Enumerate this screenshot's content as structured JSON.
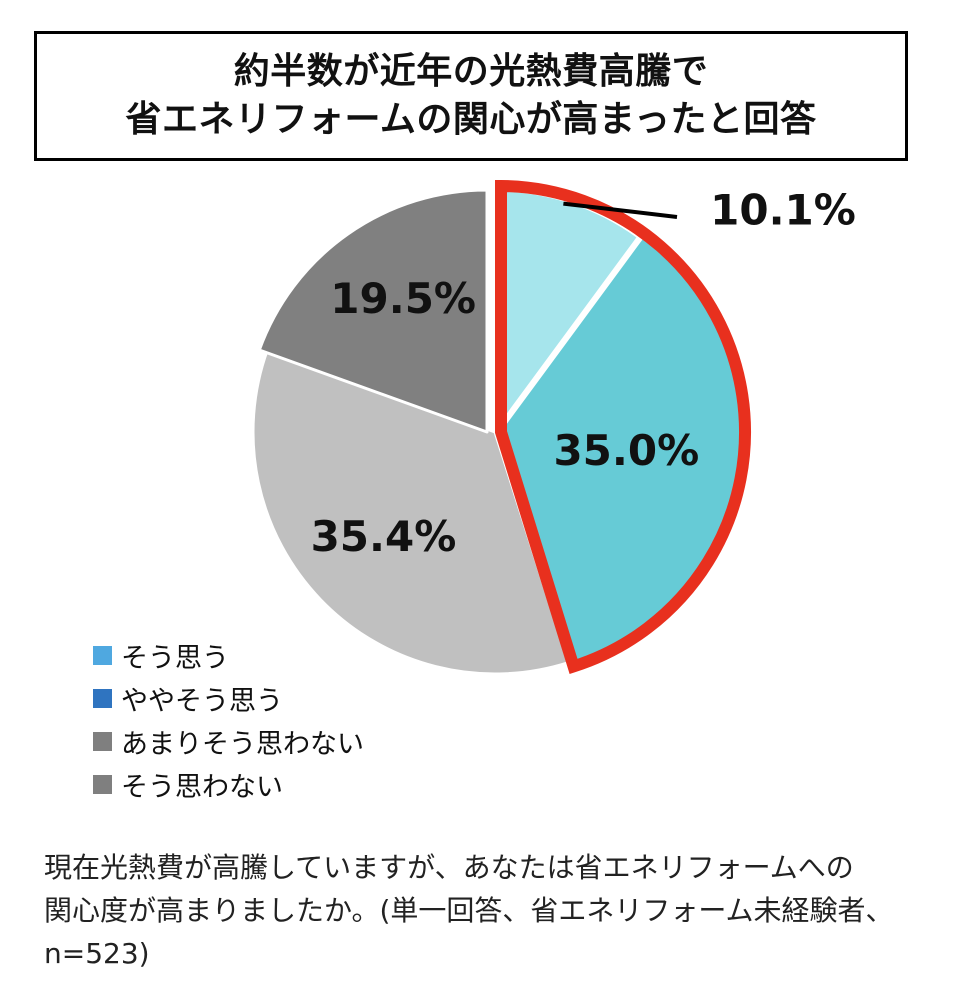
{
  "title": {
    "line1": "約半数が近年の光熱費高騰で",
    "line2": "省エネリフォームの関心が高まったと回答"
  },
  "chart_data": {
    "type": "pie",
    "slices": [
      {
        "label": "そう思う",
        "value": 10.1,
        "display": "10.1%",
        "color": "#a6e5ec",
        "highlighted": true
      },
      {
        "label": "ややそう思う",
        "value": 35.0,
        "display": "35.0%",
        "color": "#66cbd6",
        "highlighted": true
      },
      {
        "label": "あまりそう思わない",
        "value": 35.4,
        "display": "35.4%",
        "color": "#c0c0c0",
        "highlighted": false
      },
      {
        "label": "そう思わない",
        "value": 19.5,
        "display": "19.5%",
        "color": "#808080",
        "highlighted": false
      }
    ],
    "start_angle": "12 o'clock, clockwise",
    "highlight_color": "#e8301e"
  },
  "legend": {
    "placement": "bottom-left",
    "items": [
      {
        "label": "そう思う",
        "color": "#4fa8e0"
      },
      {
        "label": "ややそう思う",
        "color": "#2f74c0"
      },
      {
        "label": "あまりそう思わない",
        "color": "#7f7f7f"
      },
      {
        "label": "そう思わない",
        "color": "#7f7f7f"
      }
    ]
  },
  "footnote": {
    "line1": "現在光熱費が高騰していますが、あなたは省エネリフォームへの",
    "line2": "関心度が高まりましたか。(単一回答、省エネリフォーム未経験者、",
    "line3": "n=523)"
  }
}
